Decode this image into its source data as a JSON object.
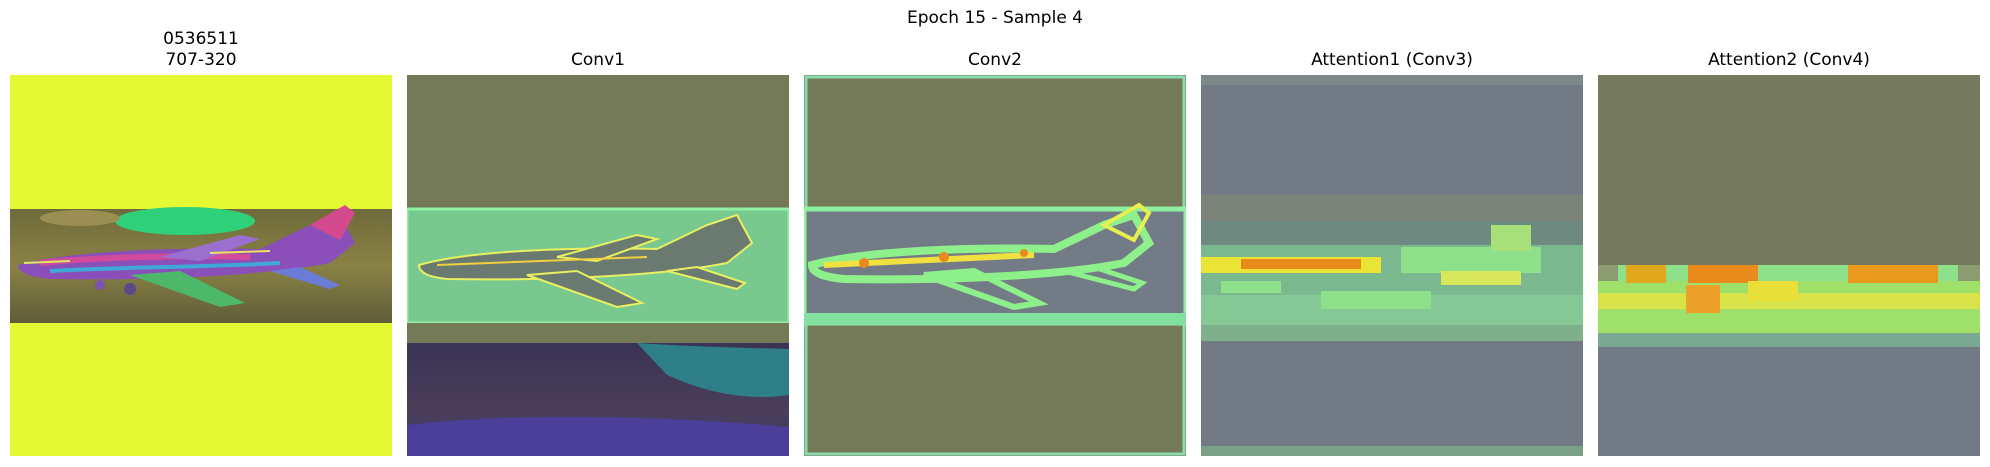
{
  "figure": {
    "suptitle": "Epoch 15 - Sample 4"
  },
  "panels": [
    {
      "title_line1": "0536511",
      "title_line2": "707-320",
      "image": "input image (airplane, false-color)"
    },
    {
      "title": "Conv1",
      "image": "feature map overlay"
    },
    {
      "title": "Conv2",
      "image": "feature map overlay"
    },
    {
      "title": "Attention1 (Conv3)",
      "image": "attention heatmap overlay"
    },
    {
      "title": "Attention2 (Conv4)",
      "image": "attention heatmap overlay"
    }
  ],
  "colors": {
    "yellow_background": "#e4f932",
    "olive_overlay": "#747a57",
    "slate_overlay": "#727b85",
    "heat_mid": "#8fe08a",
    "heat_high": "#f1e933",
    "heat_peak": "#e48a1c"
  }
}
